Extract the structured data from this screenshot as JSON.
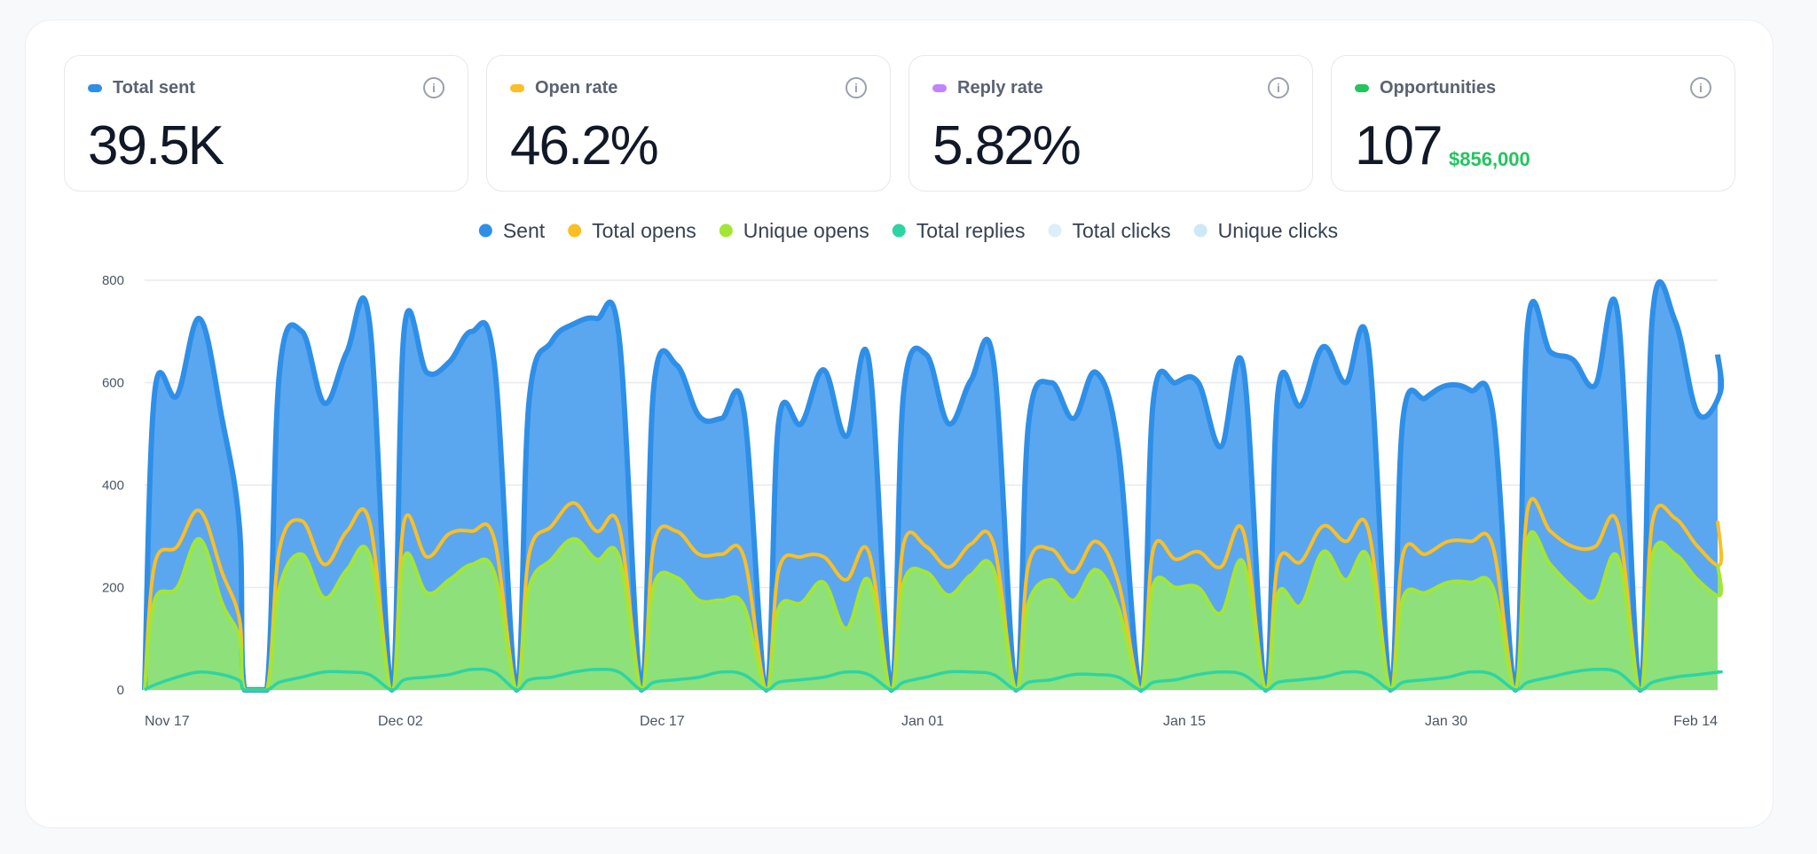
{
  "metrics": [
    {
      "label": "Total sent",
      "value": "39.5K",
      "color": "#2e8fe8",
      "info_icon": "info-icon"
    },
    {
      "label": "Open rate",
      "value": "46.2%",
      "color": "#fbbf24",
      "info_icon": "info-icon"
    },
    {
      "label": "Reply rate",
      "value": "5.82%",
      "color": "#c084fc",
      "info_icon": "info-icon"
    },
    {
      "label": "Opportunities",
      "value": "107",
      "sub_value": "$856,000",
      "color": "#22c55e",
      "info_icon": "info-icon"
    }
  ],
  "info_glyph": "i",
  "chart_data": {
    "type": "area",
    "legend_position": "top-center",
    "grid": true,
    "ylim": [
      0,
      800
    ],
    "yticks": [
      0,
      200,
      400,
      600,
      800
    ],
    "xtick_labels": [
      "Nov 17",
      "Dec 02",
      "Dec 17",
      "Jan 01",
      "Jan 15",
      "Jan 30",
      "Feb 14"
    ],
    "legend": [
      {
        "name": "Sent",
        "color": "#2e8fe8"
      },
      {
        "name": "Total opens",
        "color": "#fbbf24"
      },
      {
        "name": "Unique opens",
        "color": "#a3e635"
      },
      {
        "name": "Total replies",
        "color": "#2dd4a4"
      },
      {
        "name": "Total clicks",
        "color": "#dbeefa"
      },
      {
        "name": "Unique clicks",
        "color": "#cde9f8"
      }
    ],
    "colors": {
      "sent_line": "#2e8fe8",
      "sent_fill": "#5aa7f0",
      "opens_line": "#fbbf24",
      "unique_line": "#a3e635",
      "unique_fill": "#8ee07a",
      "replies_line": "#2dd4a4",
      "clicks_fill": "#d8eef7"
    },
    "weeks": [
      {
        "sent": [
          580,
          575,
          725,
          530,
          0
        ],
        "total_opens": [
          245,
          280,
          350,
          230,
          0
        ],
        "unique_opens": [
          175,
          200,
          295,
          170,
          0
        ],
        "total_replies": [
          10,
          25,
          35,
          30,
          0
        ]
      },
      {
        "sent": [
          620,
          700,
          560,
          660,
          720
        ],
        "total_opens": [
          275,
          330,
          245,
          310,
          330
        ],
        "unique_opens": [
          200,
          265,
          180,
          235,
          265
        ],
        "total_replies": [
          15,
          25,
          35,
          35,
          30
        ]
      },
      {
        "sent": [
          705,
          620,
          640,
          700,
          640
        ],
        "total_opens": [
          330,
          260,
          305,
          310,
          295
        ],
        "unique_opens": [
          260,
          190,
          215,
          245,
          230
        ],
        "total_replies": [
          20,
          25,
          30,
          40,
          35
        ]
      },
      {
        "sent": [
          565,
          680,
          715,
          725,
          690
        ],
        "total_opens": [
          265,
          320,
          365,
          310,
          320
        ],
        "unique_opens": [
          200,
          255,
          295,
          255,
          260
        ],
        "total_replies": [
          20,
          25,
          35,
          40,
          35
        ]
      },
      {
        "sent": [
          595,
          635,
          535,
          530,
          545
        ],
        "total_opens": [
          285,
          310,
          265,
          265,
          260
        ],
        "unique_opens": [
          205,
          220,
          175,
          175,
          165
        ],
        "total_replies": [
          15,
          20,
          25,
          35,
          30
        ]
      },
      {
        "sent": [
          525,
          520,
          625,
          495,
          645
        ],
        "total_opens": [
          235,
          260,
          260,
          215,
          270
        ],
        "unique_opens": [
          160,
          170,
          210,
          120,
          215
        ],
        "total_replies": [
          15,
          20,
          25,
          35,
          30
        ]
      },
      {
        "sent": [
          580,
          655,
          520,
          605,
          640
        ],
        "total_opens": [
          285,
          280,
          240,
          285,
          285
        ],
        "unique_opens": [
          210,
          230,
          185,
          225,
          235
        ],
        "total_replies": [
          15,
          25,
          35,
          35,
          30
        ]
      },
      {
        "sent": [
          520,
          600,
          530,
          620,
          470
        ],
        "total_opens": [
          245,
          275,
          230,
          290,
          210
        ],
        "unique_opens": [
          170,
          215,
          175,
          235,
          160
        ],
        "total_replies": [
          15,
          20,
          30,
          30,
          25
        ]
      },
      {
        "sent": [
          565,
          600,
          600,
          475,
          630
        ],
        "total_opens": [
          275,
          255,
          270,
          240,
          310
        ],
        "unique_opens": [
          205,
          200,
          200,
          150,
          250
        ],
        "total_replies": [
          15,
          20,
          30,
          35,
          30
        ]
      },
      {
        "sent": [
          585,
          555,
          670,
          600,
          675
        ],
        "total_opens": [
          250,
          250,
          320,
          290,
          315
        ],
        "unique_opens": [
          190,
          165,
          270,
          215,
          260
        ],
        "total_replies": [
          15,
          20,
          25,
          35,
          30
        ]
      },
      {
        "sent": [
          530,
          570,
          595,
          585,
          540
        ],
        "total_opens": [
          265,
          265,
          290,
          290,
          280
        ],
        "unique_opens": [
          180,
          190,
          210,
          210,
          200
        ],
        "total_replies": [
          15,
          20,
          25,
          35,
          30
        ]
      },
      {
        "sent": [
          715,
          660,
          645,
          595,
          735
        ],
        "total_opens": [
          355,
          310,
          280,
          280,
          325
        ],
        "unique_opens": [
          295,
          245,
          200,
          175,
          260
        ],
        "total_replies": [
          15,
          25,
          35,
          40,
          35
        ]
      },
      {
        "sent": [
          735,
          720,
          540,
          580,
          655
        ],
        "total_opens": [
          330,
          335,
          280,
          245,
          330
        ],
        "unique_opens": [
          265,
          265,
          215,
          185,
          245
        ],
        "total_replies": [
          15,
          25,
          30,
          35,
          35
        ]
      }
    ]
  }
}
